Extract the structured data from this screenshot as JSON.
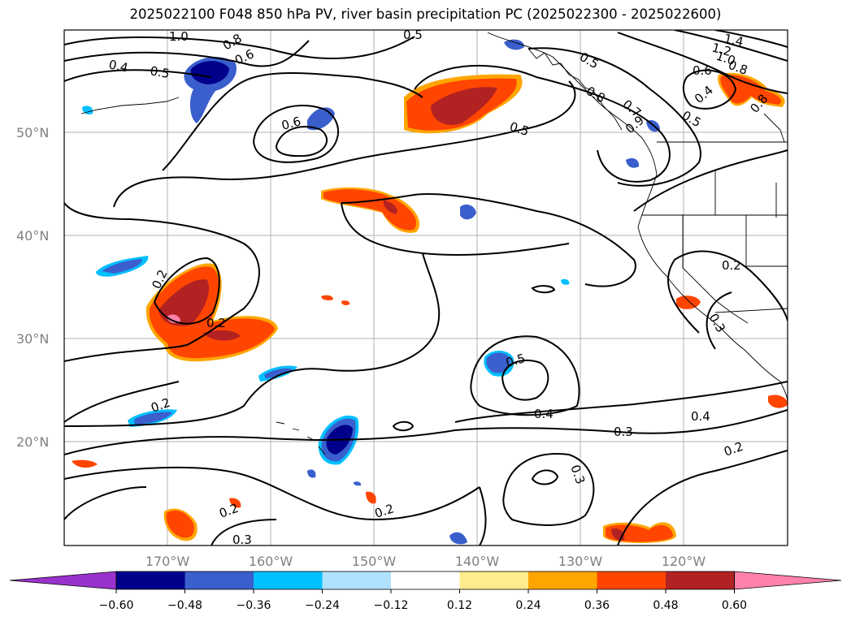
{
  "title": "2025022100 F048 850 hPa PV, river basin precipitation PC (2025022300 - 2025022600)",
  "map": {
    "lat_labels": [
      "50°N",
      "40°N",
      "30°N",
      "20°N"
    ],
    "lon_labels": [
      "170°W",
      "160°W",
      "150°W",
      "140°W",
      "130°W",
      "120°W"
    ],
    "contour_labels": [
      "1.0",
      "0.8",
      "0.6",
      "0.4",
      "0.5",
      "0.6",
      "0.5",
      "0.5",
      "0.8",
      "0.7",
      "0.9",
      "0.5",
      "1.4",
      "1.2",
      "1.0",
      "0.8",
      "0.6",
      "0.4",
      "0.5",
      "0.8",
      "0.2",
      "0.2",
      "0.3",
      "0.5",
      "0.4",
      "0.3",
      "0.4",
      "0.2",
      "0.2",
      "0.3",
      "0.2",
      "0.2",
      "0.3",
      "0.2"
    ]
  },
  "colorbar": {
    "ticks": [
      "−0.60",
      "−0.48",
      "−0.36",
      "−0.24",
      "−0.12",
      "0.12",
      "0.24",
      "0.36",
      "0.48",
      "0.60"
    ],
    "colors": [
      "#9932cc",
      "#00008b",
      "#3a5fcd",
      "#00bfff",
      "#b0e2ff",
      "#ffffff",
      "#ffec8b",
      "#ffa500",
      "#ff4500",
      "#b22222",
      "#ff82ab"
    ]
  }
}
